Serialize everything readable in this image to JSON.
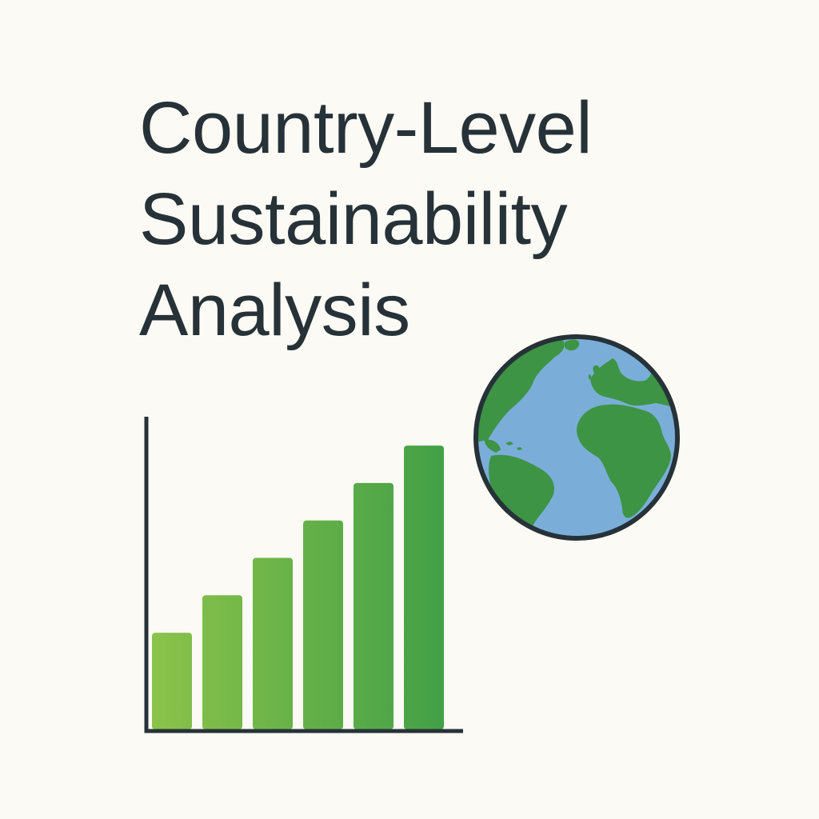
{
  "title": {
    "line1": "Country-Level",
    "line2": "Sustainability",
    "line3": "Analysis"
  },
  "colors": {
    "background": "#fcfaf4",
    "text": "#263238",
    "axis": "#263238",
    "bar_light": "#8bc34a",
    "bar_dark": "#43a047",
    "ocean": "#7aaed8",
    "land": "#3d9445",
    "globe_outline": "#263238"
  },
  "globe": {
    "icon": "earth-globe-icon"
  },
  "chart_data": {
    "type": "bar",
    "categories": [
      "",
      "",
      "",
      "",
      "",
      ""
    ],
    "values": [
      31,
      43,
      55,
      67,
      79,
      91
    ],
    "title": "",
    "xlabel": "",
    "ylabel": "",
    "ylim": [
      0,
      100
    ],
    "grid": false,
    "legend": "none",
    "tick_labels": false
  }
}
